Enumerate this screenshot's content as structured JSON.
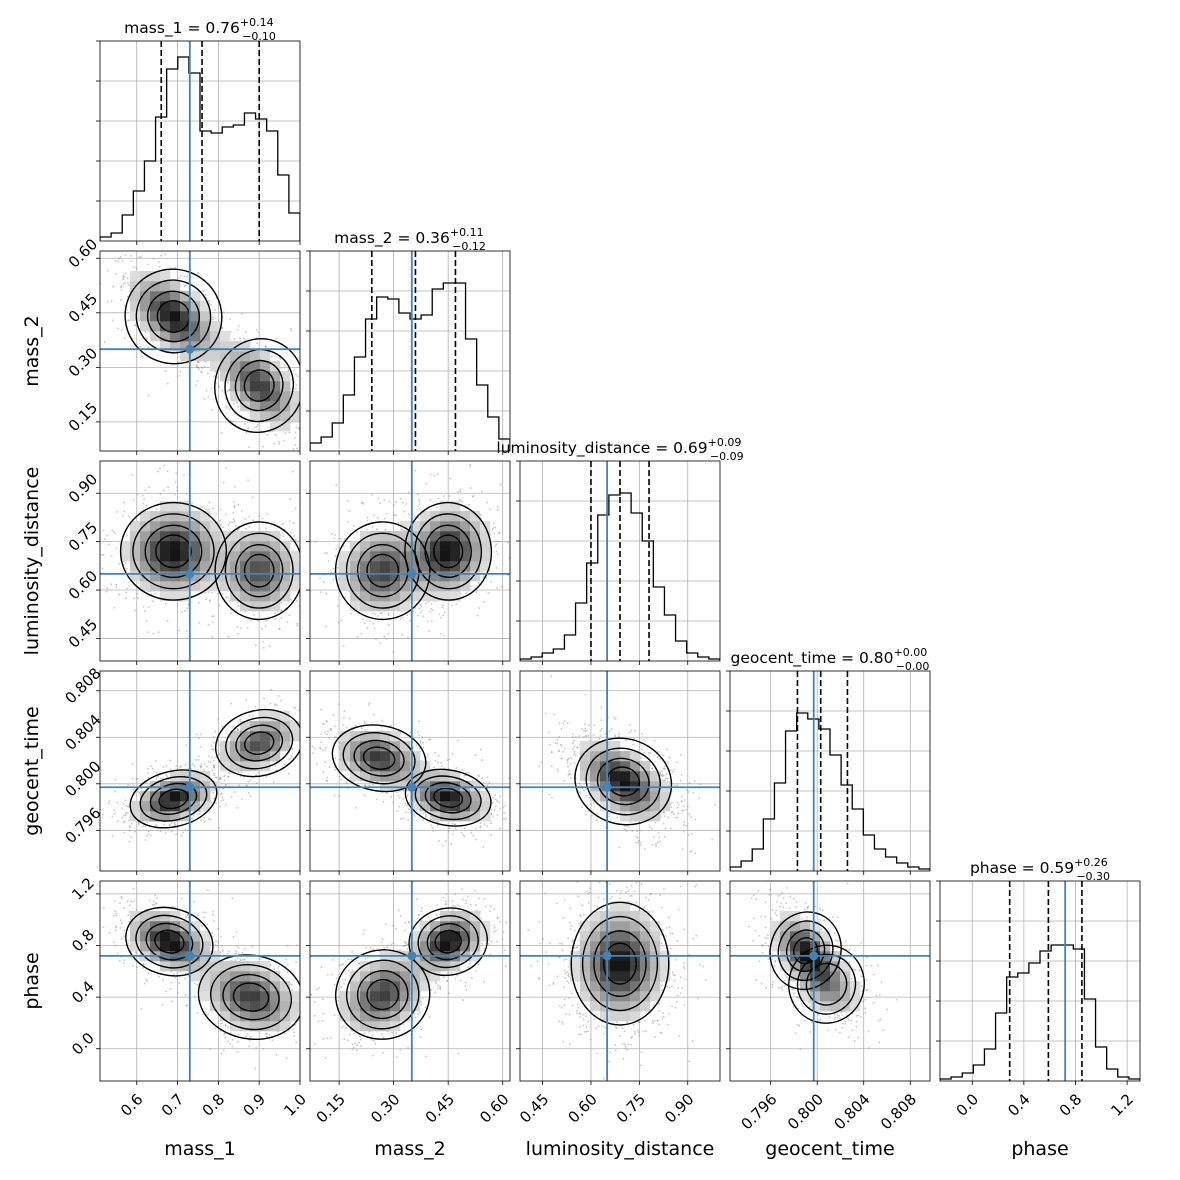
{
  "chart_data": {
    "type": "corner",
    "parameters": [
      "mass_1",
      "mass_2",
      "luminosity_distance",
      "geocent_time",
      "phase"
    ],
    "axis_labels": [
      "mass_1",
      "mass_2",
      "luminosity_distance",
      "geocent_time",
      "phase"
    ],
    "ranges": [
      [
        0.51,
        1.0
      ],
      [
        0.07,
        0.62
      ],
      [
        0.38,
        1.0
      ],
      [
        0.7925,
        0.8097
      ],
      [
        -0.25,
        1.3
      ]
    ],
    "ticks": [
      {
        "values": [
          0.6,
          0.7,
          0.8,
          0.9,
          1.0
        ],
        "labels": [
          "0.6",
          "0.7",
          "0.8",
          "0.9",
          "1.0"
        ]
      },
      {
        "values": [
          0.15,
          0.3,
          0.45,
          0.6
        ],
        "labels": [
          "0.15",
          "0.30",
          "0.45",
          "0.60"
        ]
      },
      {
        "values": [
          0.45,
          0.6,
          0.75,
          0.9
        ],
        "labels": [
          "0.45",
          "0.60",
          "0.75",
          "0.90"
        ]
      },
      {
        "values": [
          0.796,
          0.8,
          0.804,
          0.808
        ],
        "labels": [
          "0.796",
          "0.800",
          "0.804",
          "0.808"
        ]
      },
      {
        "values": [
          0.0,
          0.4,
          0.8,
          1.2
        ],
        "labels": [
          "0.0",
          "0.4",
          "0.8",
          "1.2"
        ]
      }
    ],
    "truths": [
      0.73,
      0.35,
      0.65,
      0.7997,
      0.72
    ],
    "truth_color": "#4682b4",
    "quantiles": [
      [
        0.66,
        0.76,
        0.9
      ],
      [
        0.24,
        0.36,
        0.47
      ],
      [
        0.6,
        0.69,
        0.78
      ],
      [
        0.7983,
        0.8003,
        0.8026
      ],
      [
        0.29,
        0.59,
        0.85
      ]
    ],
    "titles": [
      {
        "text": "mass_1 = 0.76",
        "sup": "+0.14",
        "sub": "−0.10"
      },
      {
        "text": "mass_2 = 0.36",
        "sup": "+0.11",
        "sub": "−0.12"
      },
      {
        "text": "luminosity_distance = 0.69",
        "sup": "+0.09",
        "sub": "−0.09"
      },
      {
        "text": "geocent_time = 0.80",
        "sup": "+0.00",
        "sub": "−0.00"
      },
      {
        "text": "phase = 0.59",
        "sup": "+0.26",
        "sub": "−0.30"
      }
    ],
    "histograms": [
      [
        0.02,
        0.04,
        0.13,
        0.25,
        0.4,
        0.62,
        0.86,
        0.92,
        0.84,
        0.55,
        0.54,
        0.57,
        0.58,
        0.64,
        0.61,
        0.55,
        0.33,
        0.14
      ],
      [
        0.04,
        0.07,
        0.14,
        0.28,
        0.47,
        0.66,
        0.77,
        0.76,
        0.69,
        0.66,
        0.68,
        0.81,
        0.84,
        0.84,
        0.56,
        0.33,
        0.17,
        0.06
      ],
      [
        0.01,
        0.02,
        0.04,
        0.06,
        0.13,
        0.29,
        0.49,
        0.73,
        0.83,
        0.84,
        0.74,
        0.6,
        0.37,
        0.23,
        0.1,
        0.04,
        0.02,
        0.01
      ],
      [
        0.02,
        0.05,
        0.11,
        0.26,
        0.44,
        0.7,
        0.79,
        0.76,
        0.71,
        0.58,
        0.43,
        0.31,
        0.18,
        0.11,
        0.07,
        0.04,
        0.02,
        0.01
      ],
      [
        0.01,
        0.02,
        0.04,
        0.08,
        0.16,
        0.34,
        0.52,
        0.54,
        0.59,
        0.65,
        0.68,
        0.68,
        0.66,
        0.41,
        0.17,
        0.06,
        0.02,
        0.01
      ]
    ],
    "pair_modes": [
      {
        "pair": [
          1,
          0
        ],
        "components": [
          {
            "mean": [
              0.69,
              0.44
            ],
            "sd": [
              0.055,
              0.06
            ],
            "rho": -0.55,
            "w": 1.0
          },
          {
            "mean": [
              0.9,
              0.25
            ],
            "sd": [
              0.05,
              0.06
            ],
            "rho": -0.55,
            "w": 0.85
          }
        ]
      },
      {
        "pair": [
          2,
          0
        ],
        "components": [
          {
            "mean": [
              0.69,
              0.72
            ],
            "sd": [
              0.06,
              0.07
            ],
            "rho": 0.0,
            "w": 1.0
          },
          {
            "mean": [
              0.9,
              0.66
            ],
            "sd": [
              0.05,
              0.07
            ],
            "rho": 0.0,
            "w": 0.75
          }
        ]
      },
      {
        "pair": [
          2,
          1
        ],
        "components": [
          {
            "mean": [
              0.27,
              0.66
            ],
            "sd": [
              0.06,
              0.07
            ],
            "rho": 0.1,
            "w": 0.8
          },
          {
            "mean": [
              0.45,
              0.72
            ],
            "sd": [
              0.055,
              0.07
            ],
            "rho": 0.1,
            "w": 1.0
          }
        ]
      },
      {
        "pair": [
          2,
          2
        ],
        "components": [
          {
            "mean": [
              0.69,
              0.69
            ],
            "sd": [
              0.07,
              0.07
            ],
            "rho": 0.0,
            "w": 1.0
          }
        ]
      },
      {
        "pair": [
          3,
          0
        ],
        "components": [
          {
            "mean": [
              0.69,
              0.7987
            ],
            "sd": [
              0.05,
              0.0011
            ],
            "rho": 0.4,
            "w": 1.0
          },
          {
            "mean": [
              0.9,
              0.8035
            ],
            "sd": [
              0.05,
              0.0013
            ],
            "rho": 0.4,
            "w": 0.75
          }
        ]
      },
      {
        "pair": [
          3,
          1
        ],
        "components": [
          {
            "mean": [
              0.26,
              0.8022
            ],
            "sd": [
              0.06,
              0.0013
            ],
            "rho": -0.3,
            "w": 0.85
          },
          {
            "mean": [
              0.45,
              0.7988
            ],
            "sd": [
              0.055,
              0.0011
            ],
            "rho": -0.3,
            "w": 1.0
          }
        ]
      },
      {
        "pair": [
          3,
          2
        ],
        "components": [
          {
            "mean": [
              0.7,
              0.8002
            ],
            "sd": [
              0.07,
              0.0017
            ],
            "rho": -0.5,
            "w": 1.0
          }
        ]
      },
      {
        "pair": [
          4,
          0
        ],
        "components": [
          {
            "mean": [
              0.68,
              0.83
            ],
            "sd": [
              0.05,
              0.12
            ],
            "rho": -0.4,
            "w": 1.0
          },
          {
            "mean": [
              0.88,
              0.4
            ],
            "sd": [
              0.06,
              0.15
            ],
            "rho": -0.3,
            "w": 0.8
          }
        ]
      },
      {
        "pair": [
          4,
          1
        ],
        "components": [
          {
            "mean": [
              0.27,
              0.42
            ],
            "sd": [
              0.06,
              0.16
            ],
            "rho": 0.3,
            "w": 0.8
          },
          {
            "mean": [
              0.45,
              0.83
            ],
            "sd": [
              0.05,
              0.12
            ],
            "rho": 0.3,
            "w": 1.0
          }
        ]
      },
      {
        "pair": [
          4,
          2
        ],
        "components": [
          {
            "mean": [
              0.69,
              0.66
            ],
            "sd": [
              0.07,
              0.22
            ],
            "rho": 0.0,
            "w": 1.0
          }
        ]
      },
      {
        "pair": [
          4,
          3
        ],
        "components": [
          {
            "mean": [
              0.799,
              0.76
            ],
            "sd": [
              0.0014,
              0.14
            ],
            "rho": -0.5,
            "w": 1.0
          },
          {
            "mean": [
              0.8008,
              0.5
            ],
            "sd": [
              0.0015,
              0.14
            ],
            "rho": -0.4,
            "w": 0.6
          }
        ]
      }
    ],
    "grid": true
  }
}
